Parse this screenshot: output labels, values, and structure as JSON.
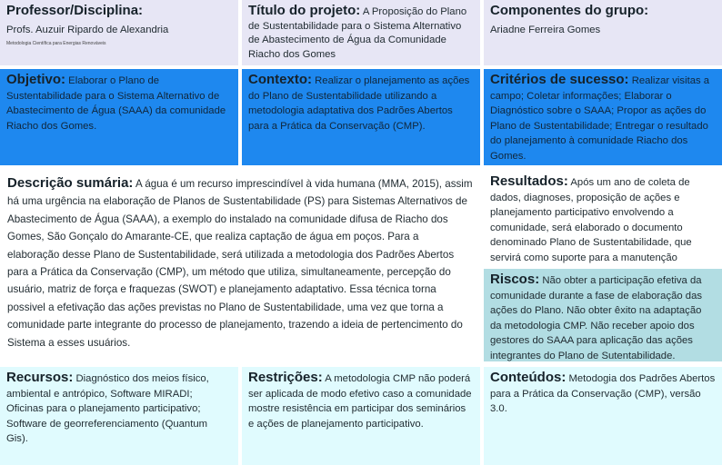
{
  "professor": {
    "heading": "Professor/Disciplina:",
    "name": "Profs. Auzuir Ripardo de Alexandria",
    "course": "Metodologia Científica para Energias Renováveis"
  },
  "titulo": {
    "heading": "Título do projeto:",
    "text": "A Proposição do Plano de Sustentabilidade para o Sistema Alternativo de Abastecimento de Água da Comunidade Riacho dos Gomes"
  },
  "componentes": {
    "heading": "Componentes do grupo:",
    "text": "Ariadne Ferreira Gomes"
  },
  "objetivo": {
    "heading": "Objetivo:",
    "text": "Elaborar o Plano de Sustentabilidade para o Sistema Alternativo de Abastecimento de Água (SAAA) da comunidade Riacho dos Gomes."
  },
  "contexto": {
    "heading": "Contexto:",
    "text": "Realizar o planejamento as ações do Plano de Sustentabilidade utilizando a metodologia adaptativa dos Padrões Abertos para a Prática da Conservação (CMP)."
  },
  "criterios": {
    "heading": "Critérios de sucesso:",
    "text": "Realizar visitas a campo; Coletar informações; Elaborar o Diagnóstico sobre o SAAA; Propor as ações do Plano de Sustentabilidade; Entregar o resultado do planejamento à comunidade Riacho dos Gomes."
  },
  "descricao": {
    "heading": "Descrição sumária:",
    "text": "A água é um recurso imprescindível à vida humana (MMA, 2015), assim há uma urgência na elaboração de Planos de Sustentabilidade (PS) para Sistemas Alternativos de Abastecimento de Água (SAAA), a exemplo do instalado na comunidade difusa de Riacho dos Gomes, São Gonçalo do Amarante-CE, que realiza captação de água em poços. Para a elaboração desse Plano de Sustentabilidade, será utilizada a metodologia dos Padrões Abertos para a Prática da Conservação (CMP), um método que utiliza, simultaneamente, percepção do usuário, matriz de força e fraquezas (SWOT) e planejamento adaptativo. Essa técnica torna possivel a efetivação das ações previstas no Plano de Sustentabilidade, uma vez que torna a comunidade parte integrante do processo de planejamento, trazendo a ideia de pertencimento do Sistema a esses usuários."
  },
  "resultados": {
    "heading": "Resultados:",
    "text": "Após um ano de coleta de dados, diagnoses, proposição de ações e planejamento participativo envolvendo a comunidade, será elaborado o documento denominado Plano de Sustentabilidade, que servirá como suporte para a manutenção sustentável do SAAA."
  },
  "riscos": {
    "heading": "Riscos:",
    "text": "Não obter a participação efetiva da comunidade durante a fase de elaboração das ações do Plano. Não obter êxito na adaptação da metodologia CMP. Não receber apoio dos gestores do SAAA para aplicação das ações integrantes do Plano de Sutentabilidade."
  },
  "recursos": {
    "heading": "Recursos:",
    "text": "Diagnóstico dos meios físico, ambiental e antrópico, Software MIRADI; Oficinas para o planejamento participativo; Software de georreferenciamento (Quantum Gis)."
  },
  "restricoes": {
    "heading": "Restrições:",
    "text": "A metodologia CMP não poderá ser aplicada de modo efetivo caso a comunidade mostre resistência em participar dos seminários e ações de planejamento participativo."
  },
  "conteudos": {
    "heading": "Conteúdos:",
    "text": "Metodogia dos Padrões Abertos para a Prática da Conservação (CMP), versão 3.0."
  },
  "colors": {
    "top": "#e7e6f5",
    "blue": "#1e88ef",
    "riscos": "#b2dde3",
    "bottom": "#e0fbfe"
  }
}
